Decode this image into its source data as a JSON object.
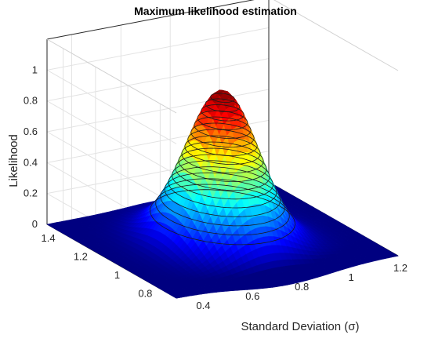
{
  "chart_data": {
    "type": "surface",
    "title": "Maximum likelihood estimation",
    "xlabel": "Standard Deviation (σ)",
    "ylabel": "",
    "zlabel": "Likelihood",
    "x_ticks": [
      "0.4",
      "0.6",
      "0.8",
      "1",
      "1.2"
    ],
    "y_ticks": [
      "0.8",
      "1",
      "1.2",
      "1.4"
    ],
    "z_ticks": [
      "0",
      "0.2",
      "0.4",
      "0.6",
      "0.8",
      "1"
    ],
    "xlim": [
      0.3,
      1.2
    ],
    "ylim": [
      0.7,
      1.5
    ],
    "zlim": [
      0,
      1.2
    ],
    "peak": {
      "x": 0.75,
      "y": 1.1,
      "z": 0.97
    },
    "contour_levels": 18,
    "colormap": "jet",
    "grid": true
  }
}
